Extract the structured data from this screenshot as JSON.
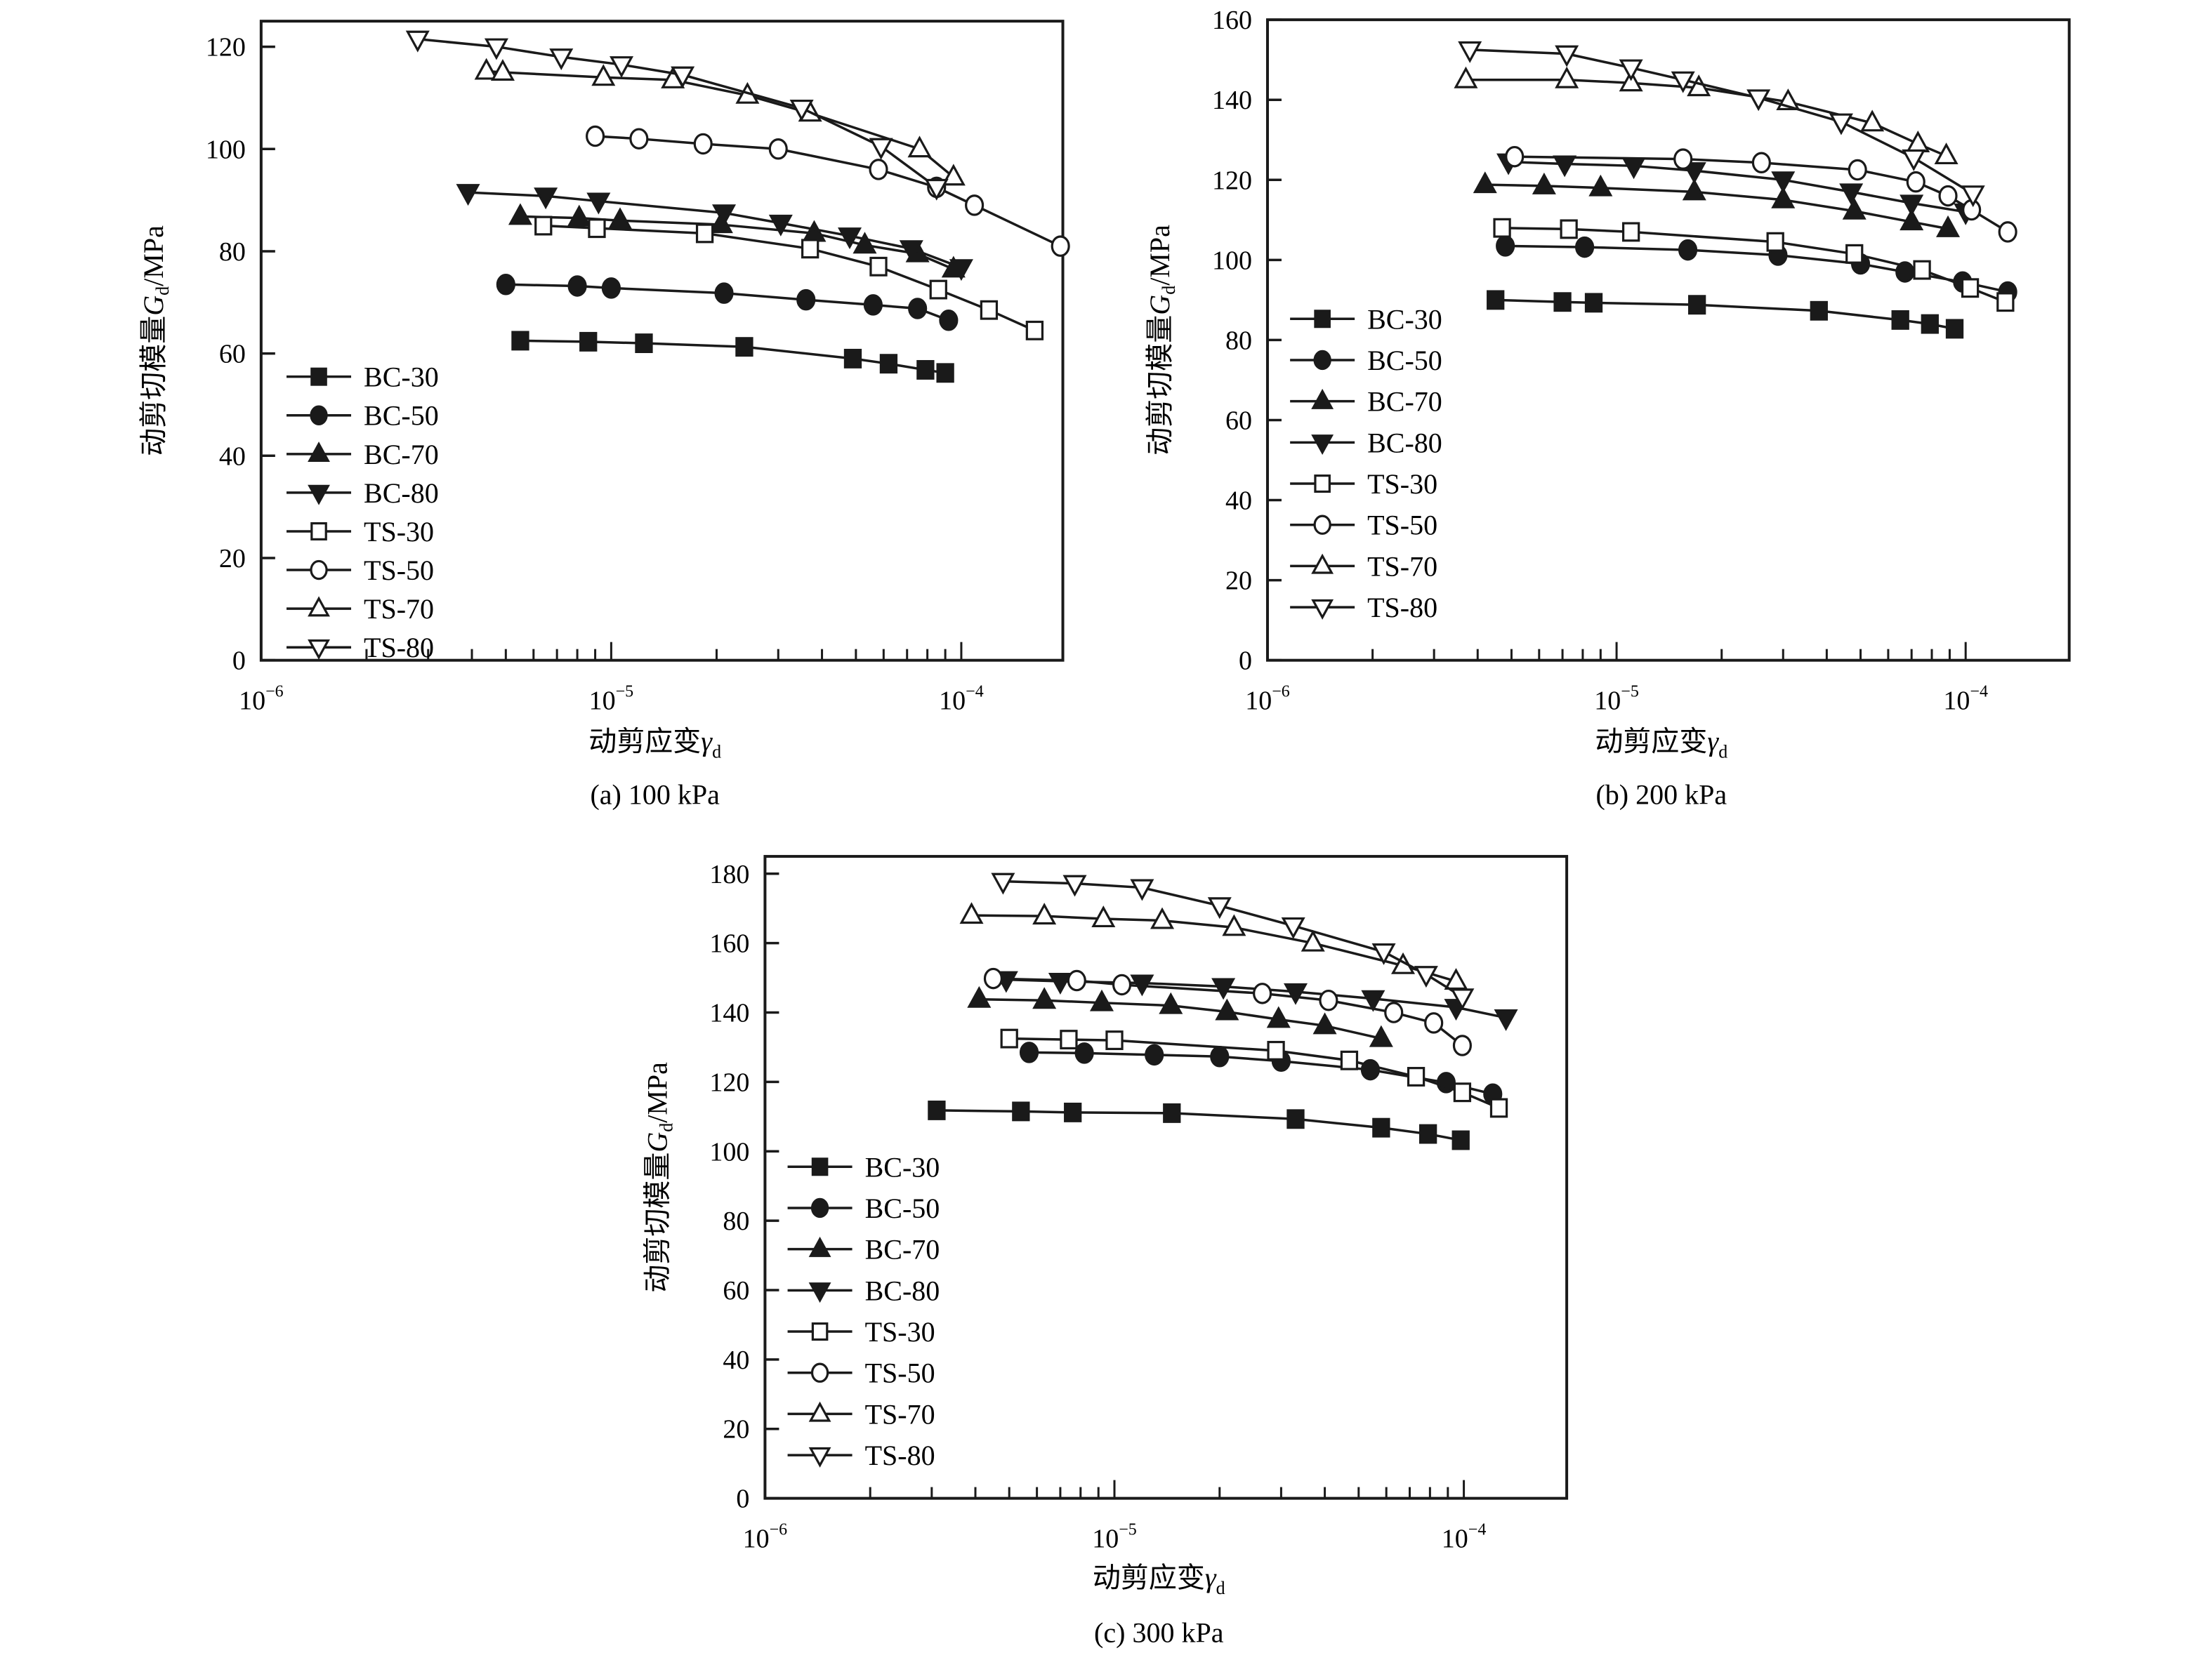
{
  "chart_data": [
    {
      "type": "scatter",
      "title": "",
      "caption": "(a) 100 kPa",
      "xlabel": "动剪应变",
      "xlabel_symbol": "γ",
      "xlabel_sub": "d",
      "ylabel": "动剪切模量",
      "ylabel_symbol": "G",
      "ylabel_sub": "d",
      "ylabel_unit": "/MPa",
      "xscale": "log",
      "xlim": [
        1e-06,
        0.000195
      ],
      "ylim": [
        0,
        125
      ],
      "yticks": [
        0,
        20,
        40,
        60,
        80,
        100,
        120
      ],
      "xticks": [
        {
          "base": "10",
          "exp": "−6"
        },
        {
          "base": "10",
          "exp": "−5"
        },
        {
          "base": "10",
          "exp": "−4"
        }
      ],
      "legend_position": "lower-left",
      "series": [
        {
          "name": "BC-30",
          "marker": "square-filled",
          "points": [
            [
              5.5e-06,
              62.5
            ],
            [
              8.6e-06,
              62.3
            ],
            [
              1.24e-05,
              62.0
            ],
            [
              2.4e-05,
              61.3
            ],
            [
              4.9e-05,
              59.0
            ],
            [
              6.2e-05,
              58.0
            ],
            [
              7.9e-05,
              56.8
            ],
            [
              9e-05,
              56.2
            ]
          ]
        },
        {
          "name": "BC-50",
          "marker": "circle-filled",
          "points": [
            [
              5e-06,
              73.5
            ],
            [
              8e-06,
              73.2
            ],
            [
              1e-05,
              72.8
            ],
            [
              2.1e-05,
              71.8
            ],
            [
              3.6e-05,
              70.5
            ],
            [
              5.6e-05,
              69.5
            ],
            [
              7.5e-05,
              68.8
            ],
            [
              9.2e-05,
              66.5
            ]
          ]
        },
        {
          "name": "BC-70",
          "marker": "triangle-up-filled",
          "points": [
            [
              5.5e-06,
              86.8
            ],
            [
              8.1e-06,
              86.5
            ],
            [
              1.06e-05,
              86.0
            ],
            [
              2.06e-05,
              85.2
            ],
            [
              3.8e-05,
              83.5
            ],
            [
              5.3e-05,
              81.2
            ],
            [
              7.5e-05,
              79.5
            ],
            [
              9.5e-05,
              76.5
            ]
          ]
        },
        {
          "name": "BC-80",
          "marker": "triangle-down-filled",
          "points": [
            [
              3.9e-06,
              91.5
            ],
            [
              6.5e-06,
              90.8
            ],
            [
              9.2e-06,
              89.8
            ],
            [
              2.1e-05,
              87.5
            ],
            [
              3.05e-05,
              85.5
            ],
            [
              4.8e-05,
              83.0
            ],
            [
              7.2e-05,
              80.5
            ],
            [
              0.0001,
              76.8
            ]
          ]
        },
        {
          "name": "TS-30",
          "marker": "square-open",
          "points": [
            [
              6.4e-06,
              85.0
            ],
            [
              9.1e-06,
              84.5
            ],
            [
              1.85e-05,
              83.5
            ],
            [
              3.7e-05,
              80.5
            ],
            [
              5.8e-05,
              77.0
            ],
            [
              8.6e-05,
              72.5
            ],
            [
              0.00012,
              68.5
            ],
            [
              0.000162,
              64.5
            ]
          ]
        },
        {
          "name": "TS-50",
          "marker": "circle-open",
          "points": [
            [
              9e-06,
              102.5
            ],
            [
              1.2e-05,
              102.0
            ],
            [
              1.83e-05,
              101.0
            ],
            [
              3e-05,
              100.0
            ],
            [
              5.8e-05,
              96.0
            ],
            [
              8.5e-05,
              92.5
            ],
            [
              0.000109,
              89.0
            ],
            [
              0.000192,
              81.0
            ]
          ]
        },
        {
          "name": "TS-70",
          "marker": "triangle-up-open",
          "points": [
            [
              4.4e-06,
              115.2
            ],
            [
              4.9e-06,
              115.0
            ],
            [
              9.5e-06,
              114.0
            ],
            [
              1.5e-05,
              113.5
            ],
            [
              2.45e-05,
              110.5
            ],
            [
              3.7e-05,
              107.0
            ],
            [
              7.6e-05,
              100.0
            ],
            [
              9.5e-05,
              94.5
            ]
          ]
        },
        {
          "name": "TS-80",
          "marker": "triangle-down-open",
          "points": [
            [
              2.8e-06,
              121.5
            ],
            [
              4.7e-06,
              120.0
            ],
            [
              7.2e-06,
              118.0
            ],
            [
              1.07e-05,
              116.5
            ],
            [
              1.6e-05,
              114.5
            ],
            [
              3.5e-05,
              108.0
            ],
            [
              5.9e-05,
              100.5
            ],
            [
              8.5e-05,
              92.5
            ]
          ]
        }
      ]
    },
    {
      "type": "scatter",
      "title": "",
      "caption": "(b) 200 kPa",
      "xlabel": "动剪应变",
      "xlabel_symbol": "γ",
      "xlabel_sub": "d",
      "ylabel": "动剪切模量",
      "ylabel_symbol": "G",
      "ylabel_sub": "d",
      "ylabel_unit": "/MPa",
      "xscale": "log",
      "xlim": [
        1e-06,
        0.000198
      ],
      "ylim": [
        0,
        160
      ],
      "yticks": [
        0,
        20,
        40,
        60,
        80,
        100,
        120,
        140,
        160
      ],
      "xticks": [
        {
          "base": "10",
          "exp": "−6"
        },
        {
          "base": "10",
          "exp": "−5"
        },
        {
          "base": "10",
          "exp": "−4"
        }
      ],
      "legend_position": "lower-left",
      "series": [
        {
          "name": "BC-30",
          "marker": "square-filled",
          "points": [
            [
              4.5e-06,
              90.0
            ],
            [
              7e-06,
              89.5
            ],
            [
              8.6e-06,
              89.3
            ],
            [
              1.7e-05,
              88.8
            ],
            [
              3.8e-05,
              87.3
            ],
            [
              6.5e-05,
              85.0
            ],
            [
              7.9e-05,
              84.0
            ],
            [
              9.3e-05,
              82.8
            ]
          ]
        },
        {
          "name": "BC-50",
          "marker": "circle-filled",
          "points": [
            [
              4.8e-06,
              103.5
            ],
            [
              8.1e-06,
              103.2
            ],
            [
              1.6e-05,
              102.5
            ],
            [
              2.9e-05,
              101.2
            ],
            [
              5e-05,
              99.0
            ],
            [
              6.7e-05,
              97.0
            ],
            [
              9.8e-05,
              94.5
            ],
            [
              0.000132,
              92.0
            ]
          ]
        },
        {
          "name": "BC-70",
          "marker": "triangle-up-filled",
          "points": [
            [
              4.2e-06,
              118.8
            ],
            [
              6.2e-06,
              118.5
            ],
            [
              9e-06,
              118.0
            ],
            [
              1.67e-05,
              117.0
            ],
            [
              3e-05,
              115.0
            ],
            [
              4.8e-05,
              112.2
            ],
            [
              7e-05,
              109.5
            ],
            [
              8.9e-05,
              107.8
            ]
          ]
        },
        {
          "name": "BC-80",
          "marker": "triangle-down-filled",
          "points": [
            [
              4.9e-06,
              124.5
            ],
            [
              7.1e-06,
              124.0
            ],
            [
              1.12e-05,
              123.5
            ],
            [
              1.67e-05,
              122.3
            ],
            [
              3e-05,
              120.0
            ],
            [
              4.7e-05,
              117.0
            ],
            [
              7e-05,
              114.2
            ],
            [
              0.0001,
              112.0
            ]
          ]
        },
        {
          "name": "TS-30",
          "marker": "square-open",
          "points": [
            [
              4.7e-06,
              108.0
            ],
            [
              7.3e-06,
              107.7
            ],
            [
              1.1e-05,
              107.0
            ],
            [
              2.85e-05,
              104.5
            ],
            [
              4.8e-05,
              101.5
            ],
            [
              7.5e-05,
              97.5
            ],
            [
              0.000103,
              93.0
            ],
            [
              0.00013,
              89.5
            ]
          ]
        },
        {
          "name": "TS-50",
          "marker": "circle-open",
          "points": [
            [
              5.1e-06,
              125.8
            ],
            [
              1.55e-05,
              125.2
            ],
            [
              2.6e-05,
              124.3
            ],
            [
              4.9e-05,
              122.5
            ],
            [
              7.2e-05,
              119.5
            ],
            [
              8.9e-05,
              116.0
            ],
            [
              0.000104,
              112.5
            ],
            [
              0.000132,
              107.0
            ]
          ]
        },
        {
          "name": "TS-70",
          "marker": "triangle-up-open",
          "points": [
            [
              3.7e-06,
              145.0
            ],
            [
              7.2e-06,
              145.0
            ],
            [
              1.1e-05,
              144.2
            ],
            [
              1.72e-05,
              143.0
            ],
            [
              3.1e-05,
              139.5
            ],
            [
              5.4e-05,
              134.2
            ],
            [
              7.3e-05,
              129.0
            ],
            [
              8.8e-05,
              126.0
            ]
          ]
        },
        {
          "name": "TS-80",
          "marker": "triangle-down-open",
          "points": [
            [
              3.8e-06,
              152.5
            ],
            [
              7.2e-06,
              151.5
            ],
            [
              1.1e-05,
              148.0
            ],
            [
              1.55e-05,
              145.0
            ],
            [
              2.55e-05,
              140.5
            ],
            [
              4.4e-05,
              134.5
            ],
            [
              7.1e-05,
              125.5
            ],
            [
              0.000105,
              116.5
            ]
          ]
        }
      ]
    },
    {
      "type": "scatter",
      "title": "",
      "caption": "(c) 300 kPa",
      "xlabel": "动剪应变",
      "xlabel_symbol": "γ",
      "xlabel_sub": "d",
      "ylabel": "动剪切模量",
      "ylabel_symbol": "G",
      "ylabel_sub": "d",
      "ylabel_unit": "/MPa",
      "xscale": "log",
      "xlim": [
        1e-06,
        0.000197
      ],
      "ylim": [
        0,
        185
      ],
      "yticks": [
        0,
        20,
        40,
        60,
        80,
        100,
        120,
        140,
        160,
        180
      ],
      "xticks": [
        {
          "base": "10",
          "exp": "−6"
        },
        {
          "base": "10",
          "exp": "−5"
        },
        {
          "base": "10",
          "exp": "−4"
        }
      ],
      "legend_position": "lower-left",
      "series": [
        {
          "name": "BC-30",
          "marker": "square-filled",
          "points": [
            [
              3.1e-06,
              111.8
            ],
            [
              5.4e-06,
              111.5
            ],
            [
              7.6e-06,
              111.2
            ],
            [
              1.46e-05,
              111.0
            ],
            [
              3.3e-05,
              109.3
            ],
            [
              5.8e-05,
              106.8
            ],
            [
              7.9e-05,
              105.0
            ],
            [
              9.8e-05,
              103.2
            ]
          ]
        },
        {
          "name": "BC-50",
          "marker": "circle-filled",
          "points": [
            [
              5.7e-06,
              128.5
            ],
            [
              8.2e-06,
              128.3
            ],
            [
              1.3e-05,
              127.8
            ],
            [
              2e-05,
              127.3
            ],
            [
              3e-05,
              126.0
            ],
            [
              5.4e-05,
              123.5
            ],
            [
              8.9e-05,
              119.8
            ],
            [
              0.000121,
              116.5
            ]
          ]
        },
        {
          "name": "BC-70",
          "marker": "triangle-up-filled",
          "points": [
            [
              4.1e-06,
              143.8
            ],
            [
              6.3e-06,
              143.5
            ],
            [
              9.2e-06,
              142.8
            ],
            [
              1.45e-05,
              142.0
            ],
            [
              2.1e-05,
              140.2
            ],
            [
              2.95e-05,
              138.0
            ],
            [
              4e-05,
              136.2
            ],
            [
              5.8e-05,
              132.5
            ]
          ]
        },
        {
          "name": "BC-80",
          "marker": "triangle-down-filled",
          "points": [
            [
              4.9e-06,
              149.5
            ],
            [
              7e-06,
              149.0
            ],
            [
              1.2e-05,
              148.5
            ],
            [
              2.05e-05,
              147.5
            ],
            [
              3.3e-05,
              146.0
            ],
            [
              5.5e-05,
              144.0
            ],
            [
              9.5e-05,
              141.5
            ],
            [
              0.000132,
              138.5
            ]
          ]
        },
        {
          "name": "TS-30",
          "marker": "square-open",
          "points": [
            [
              5e-06,
              132.5
            ],
            [
              7.4e-06,
              132.2
            ],
            [
              1e-05,
              132.0
            ],
            [
              2.9e-05,
              129.0
            ],
            [
              4.7e-05,
              126.2
            ],
            [
              7.3e-05,
              121.5
            ],
            [
              9.9e-05,
              117.0
            ],
            [
              0.000126,
              112.5
            ]
          ]
        },
        {
          "name": "TS-50",
          "marker": "circle-open",
          "points": [
            [
              4.5e-06,
              149.8
            ],
            [
              7.8e-06,
              149.2
            ],
            [
              1.05e-05,
              148.0
            ],
            [
              2.65e-05,
              145.5
            ],
            [
              4.1e-05,
              143.5
            ],
            [
              6.3e-05,
              140.0
            ],
            [
              8.2e-05,
              137.0
            ],
            [
              9.9e-05,
              130.5
            ]
          ]
        },
        {
          "name": "TS-70",
          "marker": "triangle-up-open",
          "points": [
            [
              3.9e-06,
              168.0
            ],
            [
              6.3e-06,
              167.8
            ],
            [
              9.3e-06,
              167.0
            ],
            [
              1.37e-05,
              166.5
            ],
            [
              2.2e-05,
              164.5
            ],
            [
              3.7e-05,
              160.0
            ],
            [
              6.7e-05,
              153.5
            ],
            [
              9.5e-05,
              149.0
            ]
          ]
        },
        {
          "name": "TS-80",
          "marker": "triangle-down-open",
          "points": [
            [
              4.8e-06,
              177.8
            ],
            [
              7.7e-06,
              177.2
            ],
            [
              1.2e-05,
              176.0
            ],
            [
              2e-05,
              170.8
            ],
            [
              3.25e-05,
              165.0
            ],
            [
              5.9e-05,
              157.5
            ],
            [
              7.8e-05,
              151.0
            ],
            [
              9.9e-05,
              144.5
            ]
          ]
        }
      ]
    }
  ]
}
